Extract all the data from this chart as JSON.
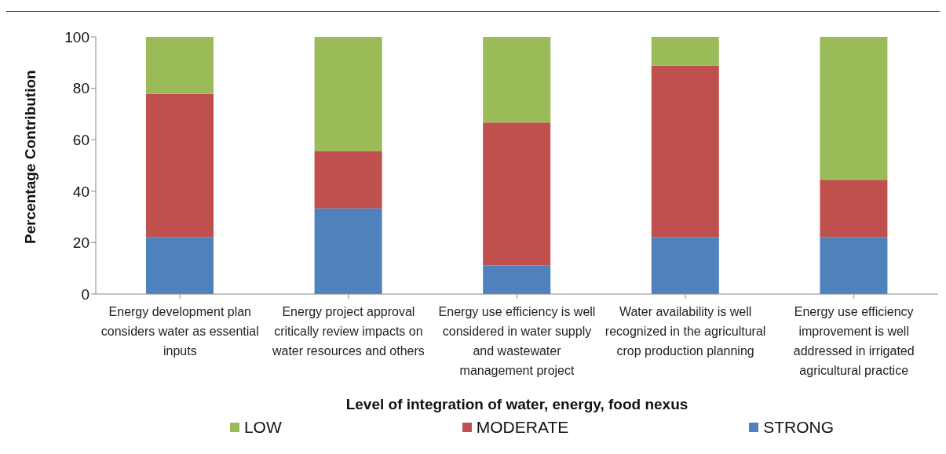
{
  "chart_data": {
    "type": "bar",
    "stacked": true,
    "xlabel": "Level of integration of water, energy, food nexus",
    "ylabel": "Percentage Contribution",
    "categories": [
      "Energy development plan considers water as essential inputs",
      "Energy project approval critically review impacts on water resources and others",
      "Energy use efficiency is well considered in water supply and wastewater management project",
      "Water availability is well recognized in the agricultural crop production planning",
      "Energy use efficiency improvement is well addressed in irrigated agricultural practice"
    ],
    "series": [
      {
        "name": "STRONG",
        "color": "#4f81bd",
        "values": [
          22.2,
          33.3,
          11.1,
          22.2,
          22.2
        ]
      },
      {
        "name": "MODERATE",
        "color": "#c0504d",
        "values": [
          55.6,
          22.2,
          55.6,
          66.7,
          22.2
        ]
      },
      {
        "name": "LOW",
        "color": "#9bbb59",
        "values": [
          22.2,
          44.5,
          33.3,
          11.1,
          55.6
        ]
      }
    ],
    "ylim": [
      0,
      100
    ],
    "yticks": [
      0,
      20,
      40,
      60,
      80,
      100
    ],
    "grid": false,
    "legend": "bottom"
  }
}
